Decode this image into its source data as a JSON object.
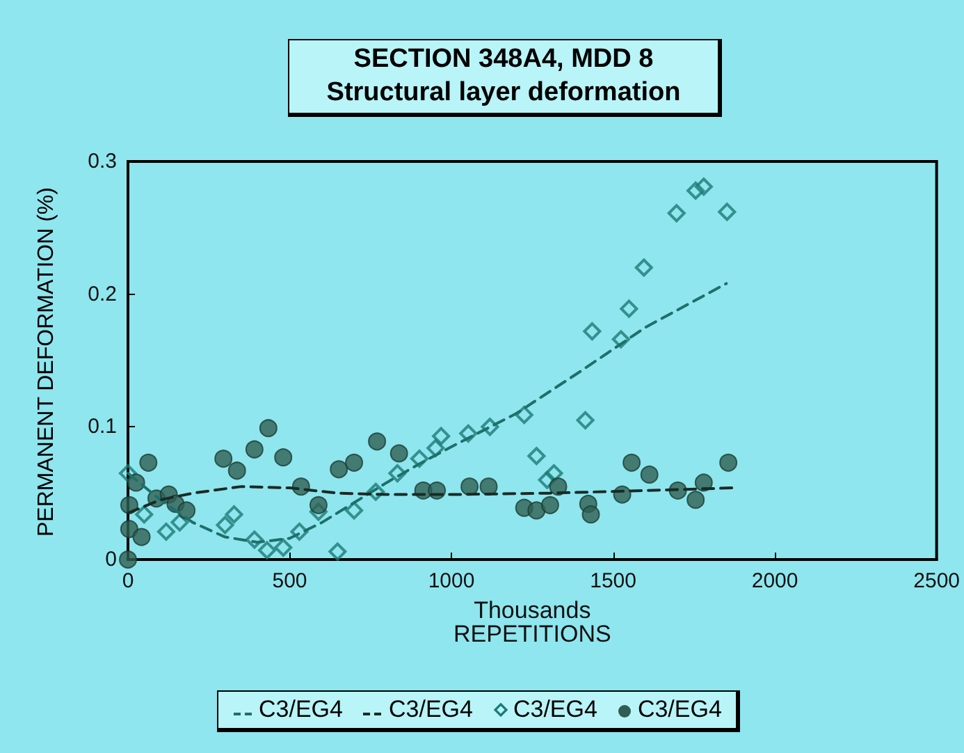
{
  "chart_data": {
    "type": "scatter",
    "title": "SECTION 348A4,  MDD 8",
    "subtitle": "Structural layer deformation",
    "xlabel": "REPETITIONS",
    "ylabel": "PERMANENT DEFORMATION (%)",
    "annotations": [
      "Thousands"
    ],
    "xlim": [
      0,
      2500
    ],
    "xticks": [
      0,
      500,
      1000,
      1500,
      2000,
      2500
    ],
    "ylim": [
      0,
      0.3
    ],
    "yticks": [
      0,
      0.1,
      0.2,
      0.3
    ],
    "grid": false,
    "legend": "bottom",
    "series": [
      {
        "name": "C3/EG4",
        "type": "line",
        "line_style": "dashed",
        "marker": "none",
        "color": "#1f6f6a",
        "x": [
          0,
          100,
          200,
          300,
          400,
          500,
          600,
          700,
          800,
          900,
          1000,
          1200,
          1400,
          1600,
          1850
        ],
        "values": [
          0.065,
          0.045,
          0.028,
          0.017,
          0.013,
          0.016,
          0.028,
          0.043,
          0.058,
          0.072,
          0.085,
          0.11,
          0.142,
          0.175,
          0.208
        ]
      },
      {
        "name": "C3/EG4",
        "type": "line",
        "line_style": "dashed",
        "marker": "none",
        "color": "#1a2a26",
        "x": [
          0,
          100,
          200,
          350,
          500,
          650,
          800,
          1000,
          1300,
          1600,
          1870
        ],
        "values": [
          0.035,
          0.045,
          0.05,
          0.055,
          0.054,
          0.05,
          0.049,
          0.049,
          0.05,
          0.052,
          0.054
        ]
      },
      {
        "name": "C3/EG4",
        "type": "scatter",
        "marker": "diamond",
        "color": "#1a7a74",
        "x": [
          0,
          50,
          118,
          160,
          300,
          328,
          391,
          430,
          480,
          530,
          589,
          648,
          699,
          766,
          833,
          901,
          951,
          968,
          1052,
          1119,
          1225,
          1263,
          1296,
          1317,
          1414,
          1435,
          1524,
          1549,
          1595,
          1696,
          1755,
          1780,
          1852
        ],
        "values": [
          0.065,
          0.034,
          0.021,
          0.028,
          0.026,
          0.034,
          0.015,
          0.007,
          0.009,
          0.021,
          0.036,
          0.006,
          0.037,
          0.051,
          0.065,
          0.076,
          0.084,
          0.093,
          0.095,
          0.1,
          0.109,
          0.078,
          0.06,
          0.065,
          0.105,
          0.172,
          0.166,
          0.189,
          0.22,
          0.261,
          0.278,
          0.281,
          0.262
        ]
      },
      {
        "name": "C3/EG4",
        "type": "scatter",
        "marker": "circle",
        "color": "#2f5f52",
        "x": [
          0,
          4,
          4,
          25,
          63,
          42,
          88,
          126,
          147,
          181,
          295,
          337,
          391,
          434,
          480,
          535,
          589,
          652,
          699,
          770,
          838,
          913,
          955,
          1056,
          1115,
          1225,
          1263,
          1305,
          1330,
          1423,
          1431,
          1528,
          1557,
          1612,
          1700,
          1755,
          1780,
          1856
        ],
        "values": [
          0,
          0.023,
          0.041,
          0.058,
          0.073,
          0.017,
          0.046,
          0.049,
          0.042,
          0.037,
          0.076,
          0.067,
          0.083,
          0.099,
          0.077,
          0.055,
          0.041,
          0.068,
          0.073,
          0.089,
          0.08,
          0.052,
          0.052,
          0.055,
          0.055,
          0.039,
          0.037,
          0.041,
          0.055,
          0.042,
          0.034,
          0.049,
          0.073,
          0.064,
          0.052,
          0.045,
          0.058,
          0.073
        ]
      }
    ]
  }
}
